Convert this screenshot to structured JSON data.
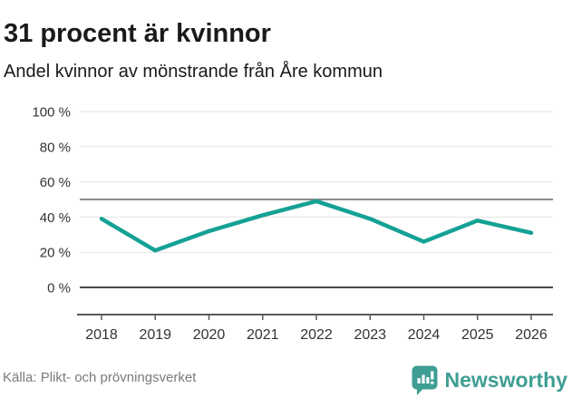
{
  "header": {
    "title": "31 procent är kvinnor",
    "subtitle": "Andel kvinnor av mönstrande från Åre kommun"
  },
  "chart_data": {
    "type": "line",
    "title": "31 procent är kvinnor",
    "subtitle": "Andel kvinnor av mönstrande från Åre kommun",
    "categories": [
      "2018",
      "2019",
      "2020",
      "2021",
      "2022",
      "2023",
      "2024",
      "2025",
      "2026"
    ],
    "series": [
      {
        "name": "Andel kvinnor av mönstrande",
        "values": [
          39,
          21,
          32,
          41,
          49,
          39,
          26,
          38,
          31
        ]
      }
    ],
    "unit": "%",
    "xlabel": "",
    "ylabel": "",
    "ylim": [
      0,
      100
    ],
    "ytick_values": [
      0,
      20,
      40,
      60,
      80,
      100
    ],
    "ytick_labels": [
      "0 %",
      "20 %",
      "40 %",
      "60 %",
      "80 %",
      "100 %"
    ],
    "reference_line_y": 50,
    "grid": true,
    "legend_position": "none"
  },
  "footer": {
    "source": "Källa: Plikt- och prövningsverket",
    "brand": "Newsworthy"
  },
  "colors": {
    "line": "#15a195",
    "brand_teal": "#3f9e93",
    "grid_light": "#e3e3e3",
    "grid_mid": "#8a8a8a",
    "grid_zero": "#4a4a4a",
    "axis": "#5a5a5a",
    "text_dark": "#1a1a1a",
    "text_axis": "#333333",
    "text_muted": "#7a7a7a"
  }
}
